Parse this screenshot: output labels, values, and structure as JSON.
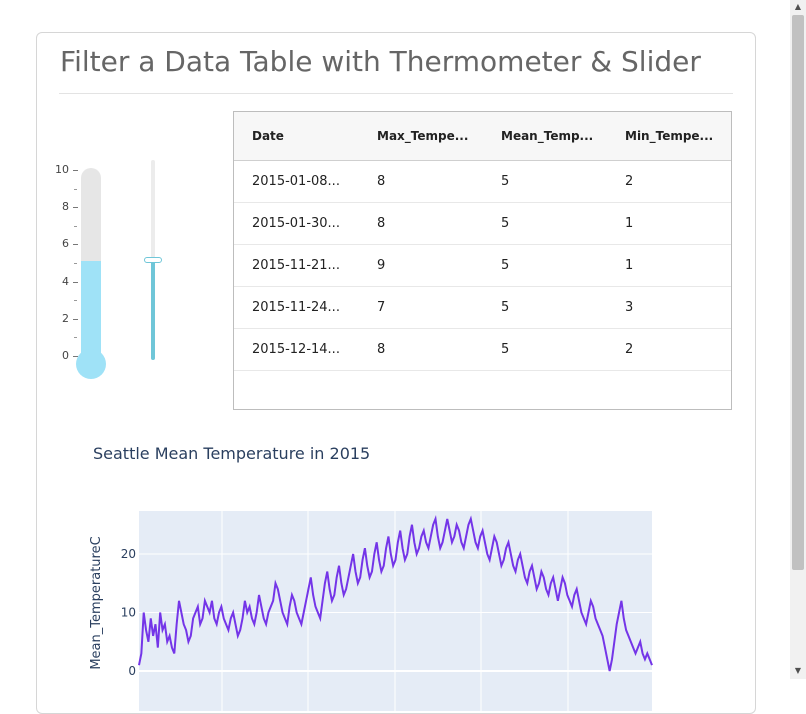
{
  "header": {
    "title": "Filter a Data Table with Thermometer & Slider"
  },
  "thermometer": {
    "tick_labels": [
      "10",
      "8",
      "6",
      "4",
      "2",
      "0"
    ],
    "min": 0,
    "max": 10,
    "value": 5,
    "mercury_color": "#9fe2f7",
    "tube_color": "#e6e6e6"
  },
  "slider": {
    "min": 0,
    "max": 10,
    "value": 5,
    "accent": "#6fc6d8"
  },
  "table": {
    "columns": [
      "Date",
      "Max_Tempe...",
      "Mean_Temp...",
      "Min_Tempe..."
    ],
    "rows": [
      [
        "2015-01-08...",
        "8",
        "5",
        "2"
      ],
      [
        "2015-01-30...",
        "8",
        "5",
        "1"
      ],
      [
        "2015-11-21...",
        "9",
        "5",
        "1"
      ],
      [
        "2015-11-24...",
        "7",
        "5",
        "3"
      ],
      [
        "2015-12-14...",
        "8",
        "5",
        "2"
      ]
    ]
  },
  "chart_data": {
    "type": "line",
    "title": "Seattle Mean Temperature in 2015",
    "ylabel": "Mean_TemperatureC",
    "xlabel": "",
    "y_tick_labels": [
      "0",
      "10",
      "20"
    ],
    "ylim": [
      0,
      27
    ],
    "line_color": "#7435e8",
    "plot_bg": "#e5ecf6",
    "values": [
      1,
      3,
      10,
      7,
      5,
      9,
      6,
      8,
      4,
      10,
      7,
      8,
      5,
      6,
      4,
      3,
      8,
      12,
      10,
      8,
      7,
      5,
      6,
      9,
      10,
      11,
      8,
      9,
      12,
      11,
      10,
      12,
      9,
      8,
      10,
      11,
      9,
      8,
      7,
      9,
      10,
      8,
      6,
      7,
      9,
      12,
      10,
      11,
      9,
      8,
      10,
      13,
      11,
      9,
      8,
      10,
      11,
      12,
      15,
      14,
      12,
      10,
      9,
      8,
      11,
      13,
      12,
      10,
      9,
      8,
      10,
      12,
      14,
      16,
      13,
      11,
      10,
      9,
      12,
      15,
      17,
      14,
      12,
      13,
      16,
      18,
      15,
      13,
      14,
      16,
      18,
      20,
      17,
      15,
      16,
      19,
      21,
      18,
      16,
      17,
      20,
      22,
      19,
      17,
      18,
      21,
      23,
      20,
      18,
      19,
      22,
      24,
      21,
      19,
      20,
      23,
      25,
      22,
      20,
      21,
      23,
      24,
      22,
      21,
      23,
      25,
      26,
      23,
      21,
      22,
      24,
      26,
      24,
      22,
      23,
      25,
      24,
      22,
      21,
      23,
      25,
      26,
      24,
      22,
      21,
      23,
      24,
      22,
      20,
      19,
      21,
      23,
      22,
      20,
      18,
      19,
      21,
      22,
      20,
      18,
      17,
      19,
      20,
      18,
      16,
      15,
      17,
      18,
      16,
      14,
      15,
      17,
      16,
      14,
      13,
      15,
      16,
      14,
      12,
      14,
      16,
      15,
      13,
      12,
      11,
      13,
      14,
      12,
      10,
      9,
      8,
      10,
      12,
      11,
      9,
      8,
      7,
      6,
      4,
      2,
      0,
      2,
      5,
      8,
      10,
      12,
      9,
      7,
      6,
      5,
      4,
      3,
      4,
      5,
      3,
      2,
      3,
      2,
      1
    ]
  }
}
